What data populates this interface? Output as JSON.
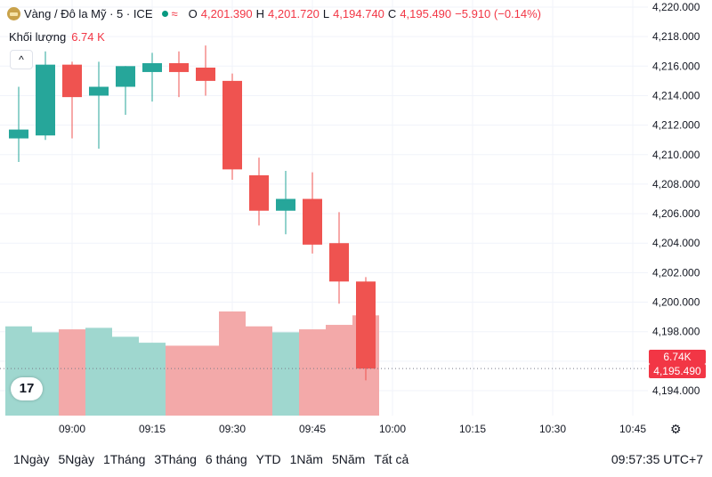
{
  "header": {
    "symbol_title": "Vàng / Đô la Mỹ · 5 · ICE",
    "icon": "gold-bar-icon",
    "wave_icon": "≈",
    "ohlc": {
      "o_label": "O",
      "o_value": "4,201.390",
      "h_label": "H",
      "h_value": "4,201.720",
      "l_label": "L",
      "l_value": "4,194.740",
      "c_label": "C",
      "c_value": "4,195.490",
      "change": "−5.910 (−0.14%)"
    }
  },
  "volume_legend": {
    "label": "Khối lượng",
    "value": "6.74 K"
  },
  "collapse_icon": "^",
  "logo_text": "17",
  "price_tags": {
    "volume": "6.74K",
    "last": "4,195.490"
  },
  "ranges": [
    "1Ngày",
    "5Ngày",
    "1Tháng",
    "3Tháng",
    "6 tháng",
    "YTD",
    "1Năm",
    "5Năm",
    "Tất cả"
  ],
  "clock": "09:57:35 UTC+7",
  "colors": {
    "up": "#26a69a",
    "down": "#ef5350",
    "up_vol": "#9fd7cf",
    "down_vol": "#f3a9a9"
  },
  "chart_data": {
    "type": "candlestick",
    "y_ticks": [
      "4,220.000",
      "4,218.000",
      "4,216.000",
      "4,214.000",
      "4,212.000",
      "4,210.000",
      "4,208.000",
      "4,206.000",
      "4,204.000",
      "4,202.000",
      "4,200.000",
      "4,198.000",
      "4,196.000",
      "4,194.000"
    ],
    "ylim": [
      4193.5,
      4220.3
    ],
    "x_ticks": [
      "09:00",
      "09:15",
      "09:30",
      "09:45",
      "10:00",
      "10:15",
      "10:30",
      "10:45"
    ],
    "candles": [
      {
        "time": "08:50",
        "open": 4211.1,
        "high": 4214.6,
        "low": 4209.5,
        "close": 4211.7,
        "volume": 6.0
      },
      {
        "time": "08:55",
        "open": 4211.3,
        "high": 4217.0,
        "low": 4211.0,
        "close": 4216.1,
        "volume": 5.6
      },
      {
        "time": "09:00",
        "open": 4216.1,
        "high": 4216.3,
        "low": 4211.1,
        "close": 4213.9,
        "volume": 5.8
      },
      {
        "time": "09:05",
        "open": 4214.0,
        "high": 4216.3,
        "low": 4210.4,
        "close": 4214.6,
        "volume": 5.9
      },
      {
        "time": "09:10",
        "open": 4214.6,
        "high": 4216.0,
        "low": 4212.7,
        "close": 4216.0,
        "volume": 5.3
      },
      {
        "time": "09:15",
        "open": 4215.6,
        "high": 4216.9,
        "low": 4213.6,
        "close": 4216.2,
        "volume": 4.9
      },
      {
        "time": "09:20",
        "open": 4216.2,
        "high": 4217.0,
        "low": 4213.9,
        "close": 4215.6,
        "volume": 4.7
      },
      {
        "time": "09:25",
        "open": 4215.9,
        "high": 4217.4,
        "low": 4214.0,
        "close": 4215.0,
        "volume": 4.7
      },
      {
        "time": "09:30",
        "open": 4215.0,
        "high": 4215.5,
        "low": 4208.3,
        "close": 4209.0,
        "volume": 7.0
      },
      {
        "time": "09:35",
        "open": 4208.6,
        "high": 4209.8,
        "low": 4205.2,
        "close": 4206.2,
        "volume": 6.0
      },
      {
        "time": "09:40",
        "open": 4206.2,
        "high": 4208.9,
        "low": 4204.6,
        "close": 4207.0,
        "volume": 5.6
      },
      {
        "time": "09:45",
        "open": 4207.0,
        "high": 4208.8,
        "low": 4203.3,
        "close": 4203.9,
        "volume": 5.8
      },
      {
        "time": "09:50",
        "open": 4204.0,
        "high": 4206.1,
        "low": 4199.9,
        "close": 4201.4,
        "volume": 6.1
      },
      {
        "time": "09:55",
        "open": 4201.4,
        "high": 4201.7,
        "low": 4194.7,
        "close": 4195.5,
        "volume": 6.74
      }
    ]
  }
}
